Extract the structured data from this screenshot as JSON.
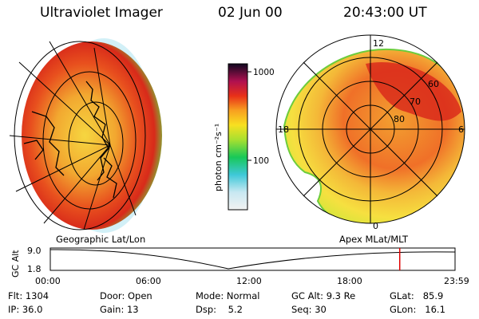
{
  "header": {
    "instrument": "Ultraviolet Imager",
    "date": "02 Jun 00",
    "time": "20:43:00 UT"
  },
  "colorbar": {
    "unit_label": "photon cm⁻²s⁻¹",
    "ticks": [
      "1000",
      "100"
    ]
  },
  "panels": {
    "left_label": "Geographic Lat/Lon",
    "right_label": "Apex MLat/MLT",
    "mlt_labels": {
      "top": "12",
      "left": "18",
      "right": "6",
      "bottom": "0"
    },
    "mlat_labels": [
      "60",
      "70",
      "80"
    ]
  },
  "timeline": {
    "ylabel": "GC Alt",
    "y_ticks": [
      "9.0",
      "1.8"
    ],
    "x_ticks": [
      "00:00",
      "06:00",
      "12:00",
      "18:00",
      "23:59"
    ],
    "marker_time_hours": 20.72,
    "marker_color": "#e00000"
  },
  "info": {
    "flt_label": "Flt:",
    "flt_value": "1304",
    "ip_label": "IP:",
    "ip_value": "36.0",
    "door_label": "Door:",
    "door_value": "Open",
    "gain_label": "Gain:",
    "gain_value": "13",
    "mode_label": "Mode:",
    "mode_value": "Normal",
    "dsp_label": "Dsp:",
    "dsp_value": "5.2",
    "gcalt_label": "GC Alt:",
    "gcalt_value": "9.3 Re",
    "seq_label": "Seq:",
    "seq_value": "30",
    "glat_label": "GLat:",
    "glat_value": "85.9",
    "glon_label": "GLon:",
    "glon_value": "16.1"
  }
}
